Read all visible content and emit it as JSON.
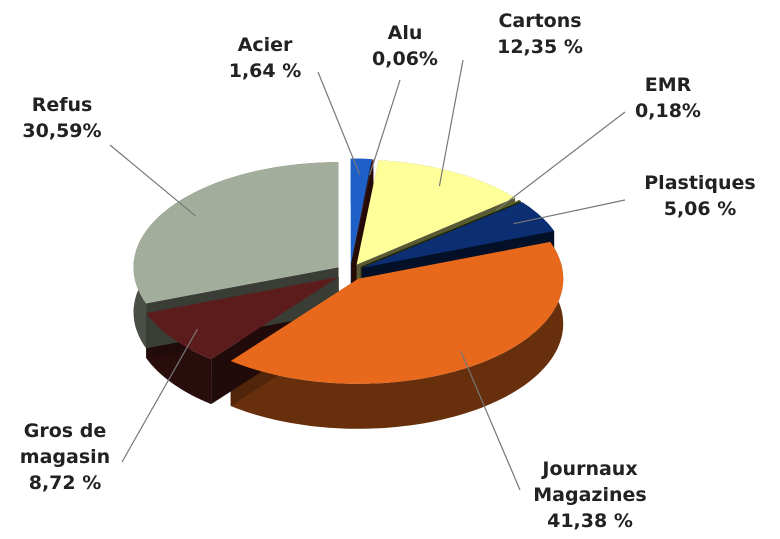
{
  "chart_data": {
    "type": "pie",
    "categories": [
      "Acier",
      "Alu",
      "Cartons",
      "EMR",
      "Plastiques",
      "Journaux Magazines",
      "Gros de magasin",
      "Refus"
    ],
    "values": [
      1.64,
      0.06,
      12.35,
      0.18,
      5.06,
      41.38,
      8.72,
      30.59
    ],
    "value_labels": [
      "1,64 %",
      "0,06%",
      "12,35 %",
      "0,18%",
      "5,06 %",
      "41,38 %",
      "8,72 %",
      "30,59%"
    ],
    "colors": [
      "#1f5fc8",
      "#6a1e12",
      "#ffff99",
      "#5f6e2c",
      "#0c2e72",
      "#e8691c",
      "#5c1c1c",
      "#a3ad9b"
    ]
  }
}
